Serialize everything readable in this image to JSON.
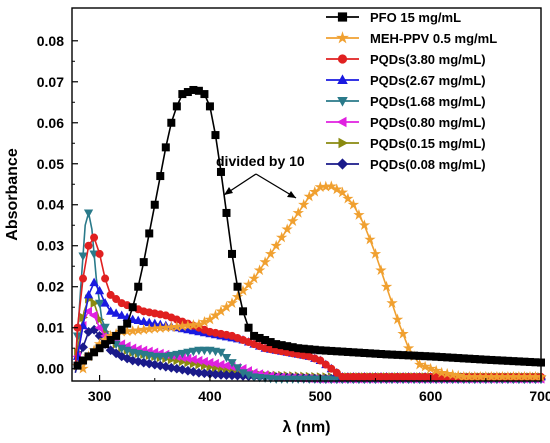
{
  "chart_data": {
    "type": "line",
    "title": "",
    "xlabel": "λ (nm)",
    "ylabel": "Absorbance",
    "xlim": [
      275,
      700
    ],
    "ylim": [
      -0.003,
      0.088
    ],
    "x_ticks": [
      300,
      400,
      500,
      600,
      700
    ],
    "y_ticks": [
      0.0,
      0.01,
      0.02,
      0.03,
      0.04,
      0.05,
      0.06,
      0.07,
      0.08
    ],
    "y_tick_labels": [
      "0.00",
      "0.01",
      "0.02",
      "0.03",
      "0.04",
      "0.05",
      "0.06",
      "0.07",
      "0.08"
    ],
    "grid": false,
    "legend_position": "top-right",
    "annotation": "divided by 10",
    "series": [
      {
        "name": "PFO 15 mg/mL",
        "color": "#000000",
        "marker": "square",
        "points": [
          [
            277,
            0.0
          ],
          [
            285,
            0.002
          ],
          [
            295,
            0.004
          ],
          [
            305,
            0.006
          ],
          [
            315,
            0.008
          ],
          [
            325,
            0.011
          ],
          [
            330,
            0.015
          ],
          [
            335,
            0.02
          ],
          [
            340,
            0.026
          ],
          [
            345,
            0.033
          ],
          [
            350,
            0.04
          ],
          [
            355,
            0.047
          ],
          [
            360,
            0.054
          ],
          [
            365,
            0.06
          ],
          [
            370,
            0.064
          ],
          [
            375,
            0.067
          ],
          [
            380,
            0.0675
          ],
          [
            385,
            0.068
          ],
          [
            390,
            0.0678
          ],
          [
            395,
            0.067
          ],
          [
            400,
            0.064
          ],
          [
            405,
            0.057
          ],
          [
            410,
            0.048
          ],
          [
            415,
            0.038
          ],
          [
            420,
            0.028
          ],
          [
            425,
            0.02
          ],
          [
            430,
            0.014
          ],
          [
            435,
            0.01
          ],
          [
            440,
            0.008
          ],
          [
            450,
            0.007
          ],
          [
            460,
            0.006
          ],
          [
            480,
            0.005
          ],
          [
            500,
            0.0045
          ],
          [
            530,
            0.004
          ],
          [
            560,
            0.0035
          ],
          [
            600,
            0.003
          ],
          [
            650,
            0.0022
          ],
          [
            700,
            0.0015
          ]
        ]
      },
      {
        "name": "MEH-PPV 0.5 mg/mL",
        "color": "#f0a030",
        "marker": "star",
        "points": [
          [
            278,
            0.001
          ],
          [
            285,
            0.0
          ],
          [
            290,
            0.003
          ],
          [
            300,
            0.006
          ],
          [
            310,
            0.008
          ],
          [
            320,
            0.009
          ],
          [
            330,
            0.0092
          ],
          [
            340,
            0.0095
          ],
          [
            350,
            0.0098
          ],
          [
            360,
            0.01
          ],
          [
            370,
            0.0102
          ],
          [
            380,
            0.0105
          ],
          [
            390,
            0.0108
          ],
          [
            400,
            0.012
          ],
          [
            410,
            0.014
          ],
          [
            420,
            0.016
          ],
          [
            430,
            0.019
          ],
          [
            440,
            0.022
          ],
          [
            450,
            0.026
          ],
          [
            460,
            0.03
          ],
          [
            470,
            0.034
          ],
          [
            480,
            0.038
          ],
          [
            490,
            0.042
          ],
          [
            500,
            0.0443
          ],
          [
            510,
            0.0445
          ],
          [
            520,
            0.043
          ],
          [
            530,
            0.04
          ],
          [
            540,
            0.035
          ],
          [
            550,
            0.028
          ],
          [
            560,
            0.02
          ],
          [
            570,
            0.012
          ],
          [
            580,
            0.005
          ],
          [
            590,
            0.001
          ],
          [
            600,
            0.0
          ],
          [
            610,
            -0.001
          ],
          [
            630,
            -0.002
          ],
          [
            660,
            -0.002
          ],
          [
            700,
            -0.002
          ]
        ]
      },
      {
        "name": "PQDs(3.80 mg/mL)",
        "color": "#e02020",
        "marker": "circle",
        "points": [
          [
            278,
            0.0
          ],
          [
            280,
            0.01
          ],
          [
            285,
            0.022
          ],
          [
            290,
            0.03
          ],
          [
            295,
            0.032
          ],
          [
            300,
            0.028
          ],
          [
            305,
            0.022
          ],
          [
            310,
            0.018
          ],
          [
            320,
            0.016
          ],
          [
            330,
            0.015
          ],
          [
            340,
            0.014
          ],
          [
            350,
            0.0135
          ],
          [
            360,
            0.013
          ],
          [
            370,
            0.012
          ],
          [
            380,
            0.011
          ],
          [
            390,
            0.01
          ],
          [
            400,
            0.009
          ],
          [
            410,
            0.0085
          ],
          [
            420,
            0.008
          ],
          [
            430,
            0.007
          ],
          [
            440,
            0.006
          ],
          [
            450,
            0.005
          ],
          [
            460,
            0.0045
          ],
          [
            470,
            0.004
          ],
          [
            480,
            0.0035
          ],
          [
            490,
            0.003
          ],
          [
            500,
            0.002
          ],
          [
            510,
            0.0
          ],
          [
            520,
            -0.002
          ],
          [
            550,
            -0.002
          ],
          [
            600,
            -0.002
          ],
          [
            650,
            -0.002
          ],
          [
            700,
            -0.002
          ]
        ]
      },
      {
        "name": "PQDs(2.67 mg/mL)",
        "color": "#1a1ae0",
        "marker": "triangle-up",
        "points": [
          [
            278,
            0.0
          ],
          [
            282,
            0.006
          ],
          [
            286,
            0.012
          ],
          [
            290,
            0.018
          ],
          [
            295,
            0.021
          ],
          [
            300,
            0.019
          ],
          [
            305,
            0.016
          ],
          [
            310,
            0.014
          ],
          [
            320,
            0.013
          ],
          [
            330,
            0.012
          ],
          [
            340,
            0.0115
          ],
          [
            350,
            0.011
          ],
          [
            360,
            0.0105
          ],
          [
            370,
            0.01
          ],
          [
            380,
            0.0095
          ],
          [
            390,
            0.009
          ],
          [
            400,
            0.0085
          ],
          [
            410,
            0.008
          ],
          [
            420,
            0.0075
          ],
          [
            430,
            0.007
          ],
          [
            440,
            0.006
          ],
          [
            450,
            0.005
          ],
          [
            460,
            0.0045
          ],
          [
            470,
            0.004
          ],
          [
            480,
            0.0035
          ],
          [
            490,
            0.003
          ],
          [
            500,
            0.002
          ],
          [
            510,
            0.0
          ],
          [
            520,
            -0.002
          ],
          [
            550,
            -0.002
          ],
          [
            600,
            -0.002
          ],
          [
            650,
            -0.002
          ],
          [
            700,
            -0.002
          ]
        ]
      },
      {
        "name": "PQDs(1.68 mg/mL)",
        "color": "#2a7a8a",
        "marker": "triangle-down",
        "points": [
          [
            278,
            0.0
          ],
          [
            283,
            0.02
          ],
          [
            287,
            0.035
          ],
          [
            290,
            0.038
          ],
          [
            293,
            0.034
          ],
          [
            297,
            0.022
          ],
          [
            302,
            0.012
          ],
          [
            310,
            0.007
          ],
          [
            320,
            0.005
          ],
          [
            330,
            0.004
          ],
          [
            340,
            0.0035
          ],
          [
            350,
            0.003
          ],
          [
            360,
            0.003
          ],
          [
            370,
            0.0035
          ],
          [
            380,
            0.004
          ],
          [
            390,
            0.0045
          ],
          [
            400,
            0.0045
          ],
          [
            410,
            0.004
          ],
          [
            420,
            0.0015
          ],
          [
            430,
            -0.001
          ],
          [
            440,
            -0.002
          ],
          [
            460,
            -0.0025
          ],
          [
            500,
            -0.0025
          ],
          [
            550,
            -0.0025
          ],
          [
            600,
            -0.0025
          ],
          [
            650,
            -0.0025
          ],
          [
            700,
            -0.0025
          ]
        ]
      },
      {
        "name": "PQDs(0.80 mg/mL)",
        "color": "#e020e0",
        "marker": "triangle-left",
        "points": [
          [
            278,
            0.0
          ],
          [
            282,
            0.006
          ],
          [
            286,
            0.012
          ],
          [
            290,
            0.014
          ],
          [
            295,
            0.013
          ],
          [
            300,
            0.01
          ],
          [
            305,
            0.008
          ],
          [
            310,
            0.007
          ],
          [
            320,
            0.006
          ],
          [
            330,
            0.005
          ],
          [
            340,
            0.0045
          ],
          [
            350,
            0.004
          ],
          [
            360,
            0.0035
          ],
          [
            370,
            0.003
          ],
          [
            380,
            0.0025
          ],
          [
            390,
            0.002
          ],
          [
            400,
            0.0015
          ],
          [
            410,
            0.001
          ],
          [
            420,
            0.0005
          ],
          [
            430,
            0.0
          ],
          [
            440,
            -0.001
          ],
          [
            460,
            -0.002
          ],
          [
            500,
            -0.0025
          ],
          [
            550,
            -0.0025
          ],
          [
            600,
            -0.0025
          ],
          [
            650,
            -0.0025
          ],
          [
            700,
            -0.0025
          ]
        ]
      },
      {
        "name": "PQDs(0.15 mg/mL)",
        "color": "#8a8a10",
        "marker": "triangle-right",
        "points": [
          [
            278,
            0.0
          ],
          [
            282,
            0.008
          ],
          [
            286,
            0.014
          ],
          [
            290,
            0.017
          ],
          [
            295,
            0.016
          ],
          [
            300,
            0.012
          ],
          [
            305,
            0.009
          ],
          [
            310,
            0.007
          ],
          [
            320,
            0.005
          ],
          [
            330,
            0.004
          ],
          [
            340,
            0.0035
          ],
          [
            350,
            0.003
          ],
          [
            360,
            0.0025
          ],
          [
            370,
            0.002
          ],
          [
            380,
            0.0015
          ],
          [
            390,
            0.001
          ],
          [
            400,
            0.0005
          ],
          [
            410,
            0.0
          ],
          [
            420,
            -0.0005
          ],
          [
            430,
            -0.001
          ],
          [
            450,
            -0.0015
          ],
          [
            500,
            -0.002
          ],
          [
            550,
            -0.002
          ],
          [
            600,
            -0.002
          ],
          [
            650,
            -0.002
          ],
          [
            700,
            -0.002
          ]
        ]
      },
      {
        "name": "PQDs(0.08 mg/mL)",
        "color": "#1a1a8a",
        "marker": "diamond",
        "points": [
          [
            278,
            -0.001
          ],
          [
            282,
            0.003
          ],
          [
            286,
            0.006
          ],
          [
            290,
            0.009
          ],
          [
            295,
            0.0095
          ],
          [
            300,
            0.008
          ],
          [
            305,
            0.006
          ],
          [
            310,
            0.0045
          ],
          [
            320,
            0.003
          ],
          [
            330,
            0.002
          ],
          [
            340,
            0.0015
          ],
          [
            350,
            0.001
          ],
          [
            360,
            0.0005
          ],
          [
            370,
            0.0
          ],
          [
            380,
            -0.0005
          ],
          [
            390,
            -0.001
          ],
          [
            410,
            -0.0015
          ],
          [
            450,
            -0.002
          ],
          [
            500,
            -0.0025
          ],
          [
            550,
            -0.0025
          ],
          [
            600,
            -0.0025
          ],
          [
            650,
            -0.0025
          ],
          [
            700,
            -0.0025
          ]
        ]
      }
    ]
  }
}
